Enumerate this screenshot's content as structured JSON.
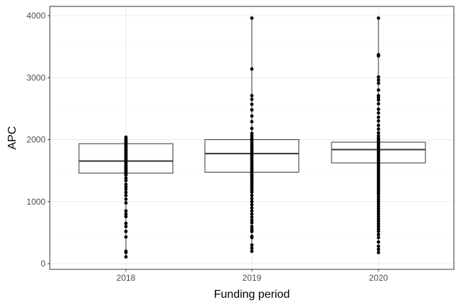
{
  "chart_data": {
    "type": "box",
    "title": "",
    "xlabel": "Funding period",
    "ylabel": "APC",
    "ylim": [
      -100,
      4150
    ],
    "yticks": [
      0,
      1000,
      2000,
      3000,
      4000
    ],
    "ytick_labels": [
      "0",
      "1000",
      "2000",
      "3000",
      "4000"
    ],
    "categories": [
      "2018",
      "2019",
      "2020"
    ],
    "grid": true,
    "legend": "none",
    "boxes": [
      {
        "category": "2018",
        "q1": 1460,
        "median": 1655,
        "q3": 1935
      },
      {
        "category": "2019",
        "q1": 1475,
        "median": 1775,
        "q3": 2000
      },
      {
        "category": "2020",
        "q1": 1625,
        "median": 1840,
        "q3": 1960
      }
    ],
    "points": {
      "2018": [
        2040,
        2010,
        1990,
        1970,
        1950,
        1930,
        1910,
        1890,
        1870,
        1850,
        1830,
        1810,
        1790,
        1770,
        1750,
        1730,
        1710,
        1690,
        1670,
        1650,
        1630,
        1610,
        1590,
        1570,
        1550,
        1530,
        1510,
        1490,
        1470,
        1450,
        1430,
        1380,
        1340,
        1280,
        1240,
        1200,
        1150,
        1100,
        1040,
        980,
        850,
        800,
        760,
        650,
        600,
        520,
        430,
        200,
        180,
        110
      ],
      "2019": [
        3960,
        3140,
        2710,
        2650,
        2570,
        2480,
        2380,
        2290,
        2180,
        2100,
        2060,
        2020,
        1990,
        1960,
        1930,
        1900,
        1870,
        1840,
        1810,
        1780,
        1750,
        1720,
        1690,
        1660,
        1630,
        1600,
        1570,
        1540,
        1510,
        1480,
        1450,
        1420,
        1390,
        1360,
        1330,
        1300,
        1270,
        1240,
        1210,
        1180,
        1150,
        1100,
        1050,
        1000,
        950,
        900,
        850,
        800,
        750,
        700,
        660,
        600,
        560,
        520,
        440,
        420,
        300,
        250,
        200
      ],
      "2020": [
        3960,
        3370,
        3350,
        3010,
        2960,
        2910,
        2800,
        2710,
        2680,
        2640,
        2580,
        2490,
        2430,
        2360,
        2300,
        2230,
        2170,
        2110,
        2060,
        2020,
        1990,
        1960,
        1930,
        1900,
        1870,
        1840,
        1810,
        1780,
        1750,
        1720,
        1690,
        1660,
        1630,
        1600,
        1570,
        1540,
        1510,
        1480,
        1450,
        1420,
        1390,
        1360,
        1330,
        1300,
        1270,
        1240,
        1210,
        1180,
        1150,
        1120,
        1080,
        1040,
        1000,
        960,
        920,
        880,
        840,
        800,
        760,
        720,
        680,
        640,
        600,
        560,
        520,
        470,
        420,
        350,
        280,
        230,
        180
      ]
    }
  }
}
